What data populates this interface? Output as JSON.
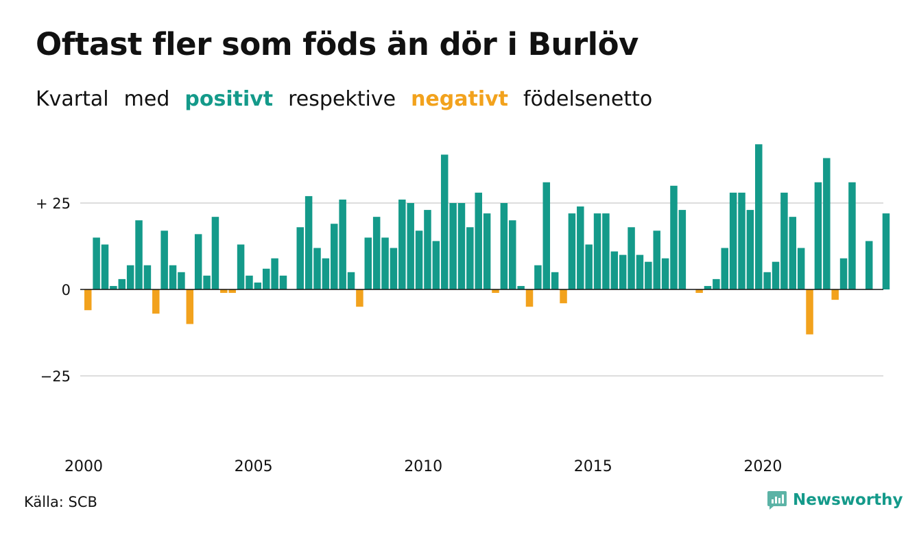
{
  "title": "Oftast fler som föds än dör i Burlöv",
  "subtitle": {
    "w1": "Kvartal",
    "w2": "med",
    "positive": "positivt",
    "w3": "respektive",
    "negative": "negativt",
    "w4": "födelsenetto"
  },
  "source": "Källa: SCB",
  "brand": "Newsworthy",
  "colors": {
    "positive": "#149a8a",
    "negative": "#f2a21d",
    "grid": "#dddddd",
    "axis": "#111111"
  },
  "chart_data": {
    "type": "bar",
    "ylim": [
      -50,
      50
    ],
    "yticks": [
      {
        "value": 25,
        "label": "+ 25"
      },
      {
        "value": 0,
        "label": "0"
      },
      {
        "value": -25,
        "label": "−25"
      }
    ],
    "xticks": [
      "2000",
      "2005",
      "2010",
      "2015",
      "2020"
    ],
    "first_year": 2000,
    "grid": true,
    "categories": [
      "2000 Q1",
      "2000 Q2",
      "2000 Q3",
      "2000 Q4",
      "2001 Q1",
      "2001 Q2",
      "2001 Q3",
      "2001 Q4",
      "2002 Q1",
      "2002 Q2",
      "2002 Q3",
      "2002 Q4",
      "2003 Q1",
      "2003 Q2",
      "2003 Q3",
      "2003 Q4",
      "2004 Q1",
      "2004 Q2",
      "2004 Q3",
      "2004 Q4",
      "2005 Q1",
      "2005 Q2",
      "2005 Q3",
      "2005 Q4",
      "2006 Q1",
      "2006 Q2",
      "2006 Q3",
      "2006 Q4",
      "2007 Q1",
      "2007 Q2",
      "2007 Q3",
      "2007 Q4",
      "2008 Q1",
      "2008 Q2",
      "2008 Q3",
      "2008 Q4",
      "2009 Q1",
      "2009 Q2",
      "2009 Q3",
      "2009 Q4",
      "2010 Q1",
      "2010 Q2",
      "2010 Q3",
      "2010 Q4",
      "2011 Q1",
      "2011 Q2",
      "2011 Q3",
      "2011 Q4",
      "2012 Q1",
      "2012 Q2",
      "2012 Q3",
      "2012 Q4",
      "2013 Q1",
      "2013 Q2",
      "2013 Q3",
      "2013 Q4",
      "2014 Q1",
      "2014 Q2",
      "2014 Q3",
      "2014 Q4",
      "2015 Q1",
      "2015 Q2",
      "2015 Q3",
      "2015 Q4",
      "2016 Q1",
      "2016 Q2",
      "2016 Q3",
      "2016 Q4",
      "2017 Q1",
      "2017 Q2",
      "2017 Q3",
      "2017 Q4",
      "2018 Q1",
      "2018 Q2",
      "2018 Q3",
      "2018 Q4",
      "2019 Q1",
      "2019 Q2",
      "2019 Q3",
      "2019 Q4",
      "2020 Q1",
      "2020 Q2",
      "2020 Q3",
      "2020 Q4",
      "2021 Q1",
      "2021 Q2",
      "2021 Q3",
      "2021 Q4",
      "2022 Q1",
      "2022 Q2",
      "2022 Q3",
      "2022 Q4",
      "2023 Q1",
      "2023 Q2",
      "2023 Q3",
      "2023 Q4"
    ],
    "values": [
      -6,
      15,
      13,
      1,
      3,
      7,
      20,
      7,
      -7,
      17,
      7,
      5,
      -10,
      16,
      4,
      21,
      -1,
      -1,
      13,
      4,
      2,
      6,
      9,
      4,
      0,
      18,
      27,
      12,
      9,
      19,
      26,
      5,
      -5,
      15,
      21,
      15,
      12,
      26,
      25,
      17,
      23,
      14,
      39,
      25,
      25,
      18,
      28,
      22,
      -1,
      25,
      20,
      1,
      -5,
      7,
      31,
      5,
      -4,
      22,
      24,
      13,
      22,
      22,
      11,
      10,
      18,
      10,
      8,
      17,
      9,
      30,
      23,
      0,
      -1,
      1,
      3,
      12,
      28,
      28,
      23,
      42,
      5,
      8,
      28,
      21,
      12,
      -13,
      31,
      38,
      -3,
      9,
      31,
      0,
      14,
      0,
      22,
      0
    ]
  }
}
